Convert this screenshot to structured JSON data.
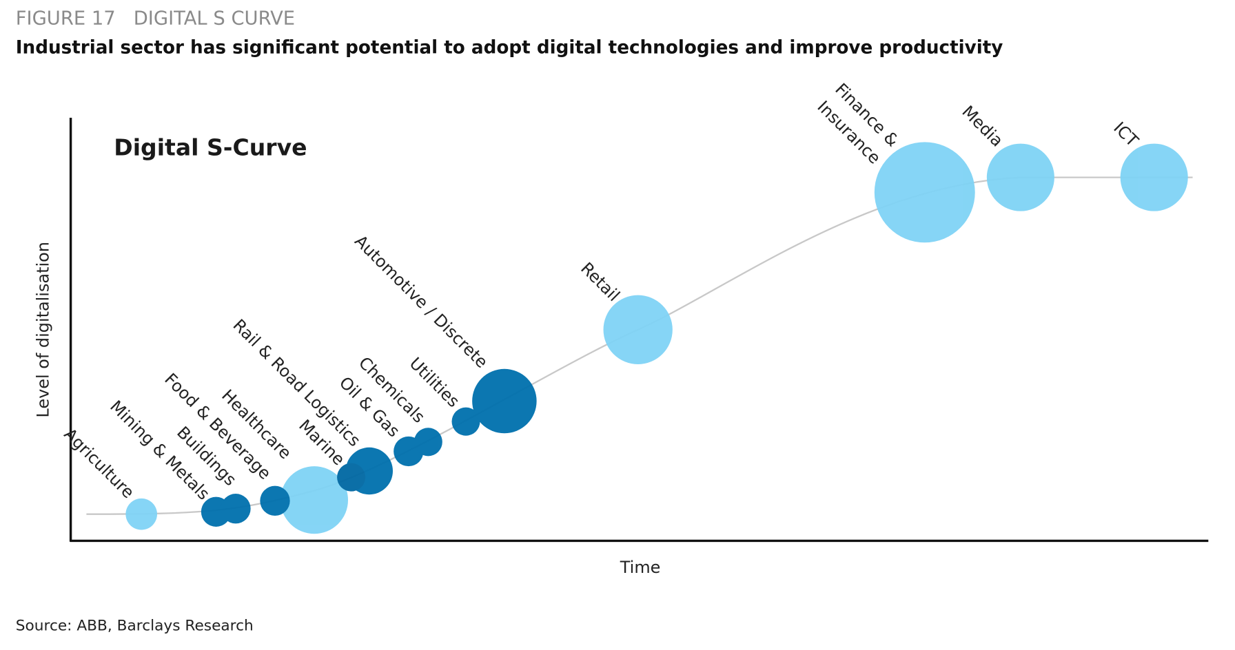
{
  "header": {
    "figure": "FIGURE 17   DIGITAL S CURVE",
    "title": "Industrial sector has significant potential to adopt digital technologies and improve productivity"
  },
  "diagram": {
    "inner_title": "Digital S-Curve",
    "y_axis_label": "Level of digitalisation",
    "x_axis_label": "Time",
    "nodes": [
      {
        "lines": [
          "Agriculture"
        ]
      },
      {
        "lines": [
          "Mining & Metals"
        ]
      },
      {
        "lines": [
          "Buildings"
        ]
      },
      {
        "lines": [
          "Food & Beverage"
        ]
      },
      {
        "lines": [
          "Healthcare"
        ]
      },
      {
        "lines": [
          "Marine"
        ]
      },
      {
        "lines": [
          "Rail & Road Logistics"
        ]
      },
      {
        "lines": [
          "Oil & Gas"
        ]
      },
      {
        "lines": [
          "Chemicals"
        ]
      },
      {
        "lines": [
          "Utilities"
        ]
      },
      {
        "lines": [
          "Automotive / Discrete"
        ]
      },
      {
        "lines": [
          "Retail"
        ]
      },
      {
        "lines": [
          "Finance &",
          "Insurance"
        ]
      },
      {
        "lines": [
          "Media"
        ]
      },
      {
        "lines": [
          "ICT"
        ]
      }
    ]
  },
  "source": "Source: ABB, Barclays Research"
}
